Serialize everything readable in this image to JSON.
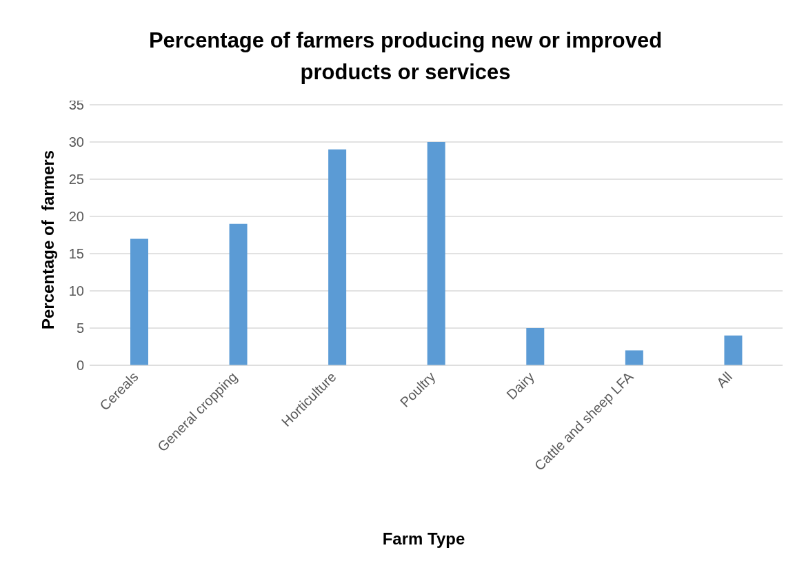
{
  "chart_data": {
    "type": "bar",
    "title": "Percentage of farmers producing new or improved products or services",
    "xlabel": "Farm Type",
    "ylabel": "Percentage of  farmers",
    "categories": [
      "Cereals",
      "General cropping",
      "Horticulture",
      "Poultry",
      "Dairy",
      "Cattle and sheep LFA",
      "All"
    ],
    "values": [
      17,
      19,
      29,
      30,
      5,
      2,
      4
    ],
    "color": "#5b9bd5",
    "ylim": [
      0,
      35
    ],
    "yticks": [
      0,
      5,
      10,
      15,
      20,
      25,
      30,
      35
    ],
    "grid": "y"
  }
}
